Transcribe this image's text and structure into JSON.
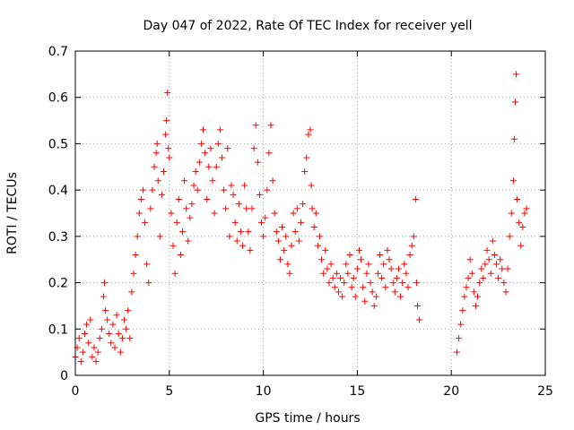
{
  "chart_data": {
    "type": "scatter",
    "title": "Day 047 of 2022, Rate Of TEC Index for receiver yell",
    "xlabel": "GPS time / hours",
    "ylabel": "ROTI / TECUs",
    "xlim": [
      0,
      25
    ],
    "ylim": [
      0,
      0.7
    ],
    "x_ticks": [
      0,
      5,
      10,
      15,
      20,
      25
    ],
    "x_tick_labels": [
      "0",
      "5",
      "10",
      "15",
      "20",
      "25"
    ],
    "y_ticks": [
      0,
      0.1,
      0.2,
      0.3,
      0.4,
      0.5,
      0.6,
      0.7
    ],
    "y_tick_labels": [
      "0",
      "0.1",
      "0.2",
      "0.3",
      "0.4",
      "0.5",
      "0.6",
      "0.7"
    ],
    "grid": true,
    "marker": "plus",
    "color": "#ff0000",
    "data_gap_hours": [
      18.4,
      20.3
    ],
    "series": [
      {
        "name": "ROTI",
        "points": [
          [
            0.0,
            0.04
          ],
          [
            0.1,
            0.06
          ],
          [
            0.2,
            0.08
          ],
          [
            0.3,
            0.03
          ],
          [
            0.4,
            0.05
          ],
          [
            0.5,
            0.09
          ],
          [
            0.6,
            0.11
          ],
          [
            0.7,
            0.07
          ],
          [
            0.8,
            0.12
          ],
          [
            0.9,
            0.04
          ],
          [
            1.0,
            0.06
          ],
          [
            1.1,
            0.03
          ],
          [
            1.2,
            0.05
          ],
          [
            1.3,
            0.08
          ],
          [
            1.4,
            0.1
          ],
          [
            1.5,
            0.17
          ],
          [
            1.55,
            0.2
          ],
          [
            1.6,
            0.14
          ],
          [
            1.7,
            0.12
          ],
          [
            1.8,
            0.09
          ],
          [
            1.9,
            0.07
          ],
          [
            2.0,
            0.11
          ],
          [
            2.1,
            0.06
          ],
          [
            2.2,
            0.13
          ],
          [
            2.3,
            0.09
          ],
          [
            2.4,
            0.05
          ],
          [
            2.5,
            0.08
          ],
          [
            2.6,
            0.12
          ],
          [
            2.7,
            0.1
          ],
          [
            2.8,
            0.14
          ],
          [
            2.9,
            0.08
          ],
          [
            3.0,
            0.18
          ],
          [
            3.1,
            0.22
          ],
          [
            3.2,
            0.26
          ],
          [
            3.3,
            0.3
          ],
          [
            3.4,
            0.35
          ],
          [
            3.5,
            0.38
          ],
          [
            3.6,
            0.4
          ],
          [
            3.7,
            0.33
          ],
          [
            3.8,
            0.24
          ],
          [
            3.9,
            0.2
          ],
          [
            4.0,
            0.36
          ],
          [
            4.1,
            0.4
          ],
          [
            4.2,
            0.45
          ],
          [
            4.3,
            0.48
          ],
          [
            4.35,
            0.5
          ],
          [
            4.4,
            0.42
          ],
          [
            4.5,
            0.3
          ],
          [
            4.6,
            0.39
          ],
          [
            4.7,
            0.44
          ],
          [
            4.8,
            0.52
          ],
          [
            4.85,
            0.55
          ],
          [
            4.9,
            0.61
          ],
          [
            4.95,
            0.49
          ],
          [
            5.0,
            0.47
          ],
          [
            5.1,
            0.35
          ],
          [
            5.2,
            0.28
          ],
          [
            5.3,
            0.22
          ],
          [
            5.4,
            0.33
          ],
          [
            5.5,
            0.38
          ],
          [
            5.6,
            0.26
          ],
          [
            5.7,
            0.31
          ],
          [
            5.8,
            0.42
          ],
          [
            5.9,
            0.36
          ],
          [
            6.0,
            0.29
          ],
          [
            6.1,
            0.34
          ],
          [
            6.2,
            0.37
          ],
          [
            6.3,
            0.41
          ],
          [
            6.4,
            0.44
          ],
          [
            6.5,
            0.4
          ],
          [
            6.6,
            0.46
          ],
          [
            6.7,
            0.5
          ],
          [
            6.8,
            0.53
          ],
          [
            6.9,
            0.48
          ],
          [
            7.0,
            0.38
          ],
          [
            7.1,
            0.45
          ],
          [
            7.2,
            0.49
          ],
          [
            7.3,
            0.42
          ],
          [
            7.4,
            0.35
          ],
          [
            7.5,
            0.45
          ],
          [
            7.6,
            0.5
          ],
          [
            7.7,
            0.53
          ],
          [
            7.8,
            0.47
          ],
          [
            7.9,
            0.4
          ],
          [
            8.0,
            0.36
          ],
          [
            8.1,
            0.49
          ],
          [
            8.2,
            0.3
          ],
          [
            8.3,
            0.41
          ],
          [
            8.4,
            0.39
          ],
          [
            8.5,
            0.33
          ],
          [
            8.6,
            0.29
          ],
          [
            8.7,
            0.37
          ],
          [
            8.8,
            0.31
          ],
          [
            8.9,
            0.28
          ],
          [
            9.0,
            0.41
          ],
          [
            9.1,
            0.36
          ],
          [
            9.2,
            0.31
          ],
          [
            9.3,
            0.27
          ],
          [
            9.4,
            0.36
          ],
          [
            9.5,
            0.49
          ],
          [
            9.6,
            0.54
          ],
          [
            9.7,
            0.46
          ],
          [
            9.8,
            0.39
          ],
          [
            9.9,
            0.33
          ],
          [
            10.0,
            0.3
          ],
          [
            10.1,
            0.34
          ],
          [
            10.2,
            0.4
          ],
          [
            10.3,
            0.48
          ],
          [
            10.4,
            0.54
          ],
          [
            10.5,
            0.42
          ],
          [
            10.6,
            0.35
          ],
          [
            10.7,
            0.31
          ],
          [
            10.8,
            0.29
          ],
          [
            10.9,
            0.25
          ],
          [
            11.0,
            0.32
          ],
          [
            11.1,
            0.27
          ],
          [
            11.2,
            0.3
          ],
          [
            11.3,
            0.24
          ],
          [
            11.4,
            0.22
          ],
          [
            11.5,
            0.28
          ],
          [
            11.6,
            0.35
          ],
          [
            11.7,
            0.31
          ],
          [
            11.8,
            0.36
          ],
          [
            11.9,
            0.29
          ],
          [
            12.0,
            0.33
          ],
          [
            12.1,
            0.37
          ],
          [
            12.2,
            0.44
          ],
          [
            12.3,
            0.47
          ],
          [
            12.4,
            0.52
          ],
          [
            12.5,
            0.53
          ],
          [
            12.55,
            0.41
          ],
          [
            12.6,
            0.36
          ],
          [
            12.7,
            0.32
          ],
          [
            12.8,
            0.35
          ],
          [
            12.9,
            0.28
          ],
          [
            13.0,
            0.3
          ],
          [
            13.1,
            0.25
          ],
          [
            13.2,
            0.22
          ],
          [
            13.3,
            0.27
          ],
          [
            13.4,
            0.23
          ],
          [
            13.5,
            0.2
          ],
          [
            13.6,
            0.24
          ],
          [
            13.7,
            0.21
          ],
          [
            13.8,
            0.19
          ],
          [
            13.9,
            0.22
          ],
          [
            14.0,
            0.18
          ],
          [
            14.1,
            0.21
          ],
          [
            14.2,
            0.17
          ],
          [
            14.3,
            0.2
          ],
          [
            14.4,
            0.24
          ],
          [
            14.5,
            0.22
          ],
          [
            14.6,
            0.26
          ],
          [
            14.7,
            0.19
          ],
          [
            14.8,
            0.21
          ],
          [
            14.9,
            0.17
          ],
          [
            15.0,
            0.23
          ],
          [
            15.1,
            0.27
          ],
          [
            15.2,
            0.25
          ],
          [
            15.3,
            0.19
          ],
          [
            15.4,
            0.16
          ],
          [
            15.5,
            0.22
          ],
          [
            15.6,
            0.24
          ],
          [
            15.7,
            0.2
          ],
          [
            15.8,
            0.18
          ],
          [
            15.9,
            0.15
          ],
          [
            16.0,
            0.17
          ],
          [
            16.1,
            0.22
          ],
          [
            16.2,
            0.26
          ],
          [
            16.3,
            0.21
          ],
          [
            16.4,
            0.24
          ],
          [
            16.5,
            0.19
          ],
          [
            16.6,
            0.27
          ],
          [
            16.7,
            0.25
          ],
          [
            16.8,
            0.23
          ],
          [
            16.9,
            0.2
          ],
          [
            17.0,
            0.18
          ],
          [
            17.1,
            0.21
          ],
          [
            17.2,
            0.23
          ],
          [
            17.3,
            0.17
          ],
          [
            17.4,
            0.2
          ],
          [
            17.5,
            0.24
          ],
          [
            17.6,
            0.22
          ],
          [
            17.7,
            0.19
          ],
          [
            17.8,
            0.26
          ],
          [
            17.9,
            0.28
          ],
          [
            18.0,
            0.3
          ],
          [
            18.1,
            0.38
          ],
          [
            18.15,
            0.2
          ],
          [
            18.2,
            0.15
          ],
          [
            18.3,
            0.12
          ],
          [
            20.3,
            0.05
          ],
          [
            20.4,
            0.08
          ],
          [
            20.5,
            0.11
          ],
          [
            20.6,
            0.14
          ],
          [
            20.7,
            0.17
          ],
          [
            20.8,
            0.19
          ],
          [
            20.9,
            0.21
          ],
          [
            21.0,
            0.25
          ],
          [
            21.1,
            0.22
          ],
          [
            21.2,
            0.18
          ],
          [
            21.3,
            0.15
          ],
          [
            21.4,
            0.17
          ],
          [
            21.5,
            0.2
          ],
          [
            21.6,
            0.23
          ],
          [
            21.7,
            0.21
          ],
          [
            21.8,
            0.24
          ],
          [
            21.9,
            0.27
          ],
          [
            22.0,
            0.25
          ],
          [
            22.1,
            0.22
          ],
          [
            22.2,
            0.29
          ],
          [
            22.3,
            0.26
          ],
          [
            22.4,
            0.24
          ],
          [
            22.5,
            0.21
          ],
          [
            22.6,
            0.25
          ],
          [
            22.7,
            0.23
          ],
          [
            22.8,
            0.2
          ],
          [
            22.9,
            0.18
          ],
          [
            23.0,
            0.23
          ],
          [
            23.1,
            0.3
          ],
          [
            23.2,
            0.35
          ],
          [
            23.3,
            0.42
          ],
          [
            23.35,
            0.51
          ],
          [
            23.4,
            0.59
          ],
          [
            23.45,
            0.65
          ],
          [
            23.5,
            0.38
          ],
          [
            23.6,
            0.33
          ],
          [
            23.7,
            0.28
          ],
          [
            23.8,
            0.32
          ],
          [
            23.9,
            0.35
          ],
          [
            24.0,
            0.36
          ]
        ]
      }
    ]
  }
}
